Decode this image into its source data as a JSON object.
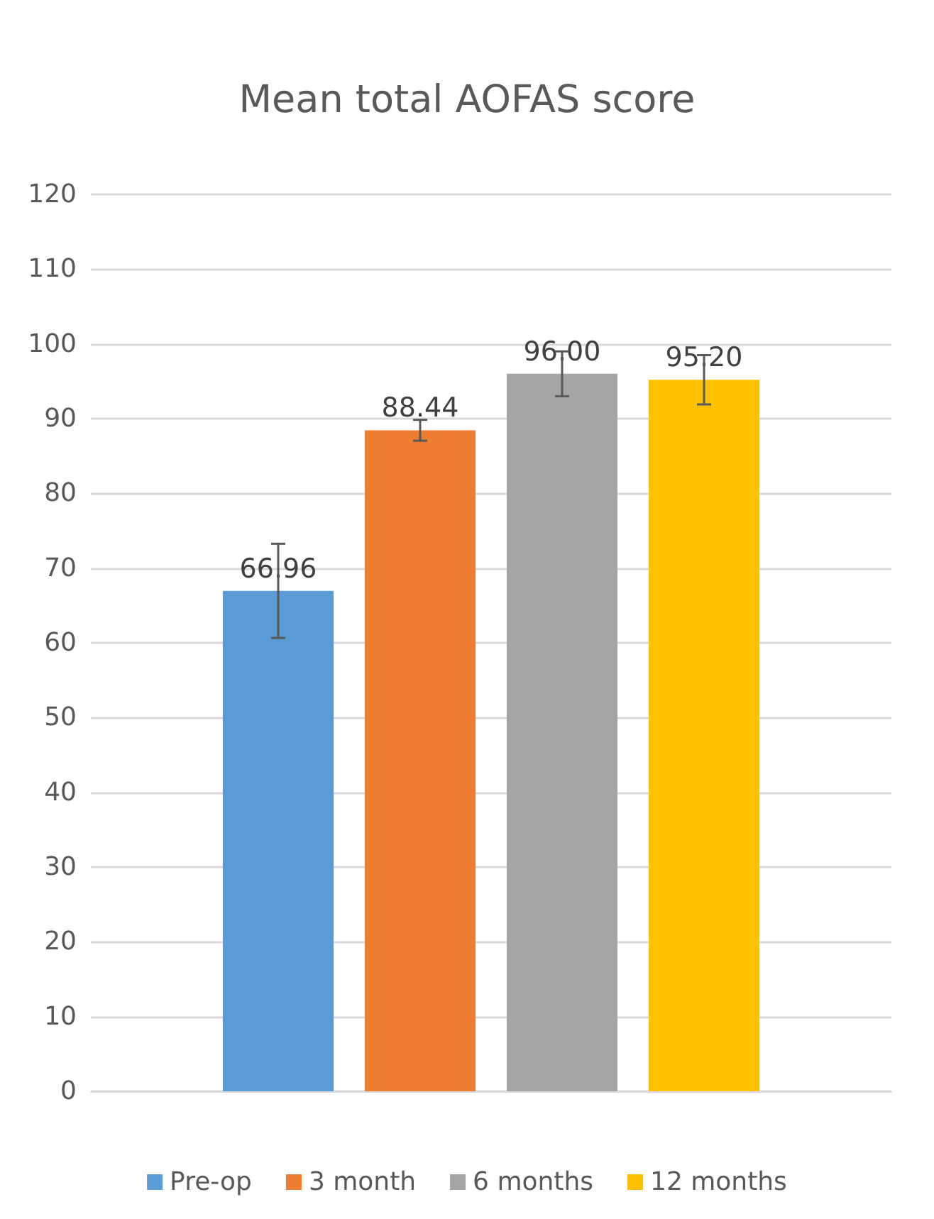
{
  "chart_data": {
    "type": "bar",
    "title": "Mean total AOFAS score",
    "categories": [
      null
    ],
    "series": [
      {
        "name": "Pre-op",
        "color": "#5b9bd5",
        "values": [
          66.96
        ],
        "value_labels": [
          "66.96"
        ],
        "errors": [
          6.3
        ]
      },
      {
        "name": "3 month",
        "color": "#ed7d31",
        "values": [
          88.44
        ],
        "value_labels": [
          "88.44"
        ],
        "errors": [
          1.4
        ]
      },
      {
        "name": "6 months",
        "color": "#a5a5a5",
        "values": [
          96.0
        ],
        "value_labels": [
          "96.00"
        ],
        "errors": [
          3.0
        ]
      },
      {
        "name": "12 months",
        "color": "#ffc000",
        "values": [
          95.2
        ],
        "value_labels": [
          "95.20"
        ],
        "errors": [
          3.3
        ]
      }
    ],
    "ylim": [
      0,
      120
    ],
    "yticks": [
      0,
      10,
      20,
      30,
      40,
      50,
      60,
      70,
      80,
      90,
      100,
      110,
      120
    ],
    "grid": "y",
    "legend": "bottom"
  }
}
